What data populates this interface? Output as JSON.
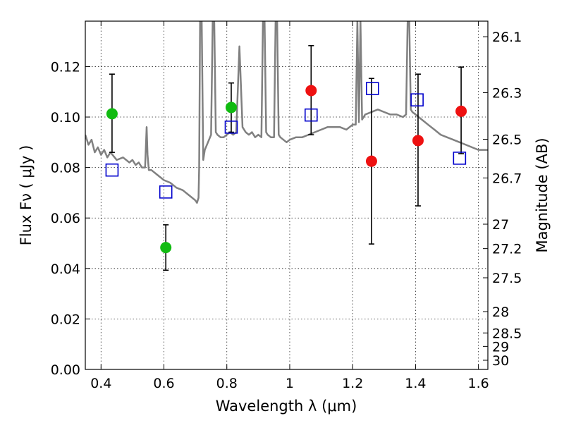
{
  "chart_data": {
    "type": "scatter",
    "xlabel": "Wavelength  λ (μm)",
    "ylabel": "Flux  Fν  ( μJy )",
    "y2label": "Magnitude (AB)",
    "xlim": [
      0.35,
      1.63
    ],
    "ylim": [
      0.0,
      0.138
    ],
    "grid": true,
    "x_ticks": [
      0.4,
      0.6,
      0.8,
      1.0,
      1.2,
      1.4,
      1.6
    ],
    "x_tick_labels": [
      "0.4",
      "0.6",
      "0.8",
      "1",
      "1.2",
      "1.4",
      "1.6"
    ],
    "y_ticks": [
      0.0,
      0.02,
      0.04,
      0.06,
      0.08,
      0.1,
      0.12
    ],
    "y_tick_labels": [
      "0.00",
      "0.02",
      "0.04",
      "0.06",
      "0.08",
      "0.10",
      "0.12"
    ],
    "y2_ticks": [
      26.1,
      26.3,
      26.5,
      26.7,
      27,
      27.2,
      27.5,
      28,
      28.5,
      29,
      30
    ],
    "y2_tick_labels": [
      "26.1",
      "26.3",
      "26.5",
      "26.7",
      "27",
      "27.2",
      "27.5",
      "28",
      "28.5",
      "29",
      "30"
    ],
    "series": [
      {
        "marker": "circle",
        "color": "#11bb11",
        "points": [
          {
            "x": 0.435,
            "y": 0.1013,
            "err_lo": 0.086,
            "err_hi": 0.117
          },
          {
            "x": 0.606,
            "y": 0.0483,
            "err_lo": 0.0393,
            "err_hi": 0.0573
          },
          {
            "x": 0.814,
            "y": 0.1038,
            "err_lo": 0.094,
            "err_hi": 0.1135
          }
        ]
      },
      {
        "marker": "circle",
        "color": "#ee1111",
        "points": [
          {
            "x": 1.068,
            "y": 0.1105,
            "err_lo": 0.093,
            "err_hi": 0.1283
          },
          {
            "x": 1.26,
            "y": 0.0825,
            "err_lo": 0.0497,
            "err_hi": 0.1153
          },
          {
            "x": 1.408,
            "y": 0.0907,
            "err_lo": 0.0648,
            "err_hi": 0.117
          },
          {
            "x": 1.545,
            "y": 0.1023,
            "err_lo": 0.0855,
            "err_hi": 0.1198
          }
        ]
      },
      {
        "marker": "open-square",
        "color": "#0000cc",
        "points": [
          {
            "x": 0.435,
            "y": 0.079
          },
          {
            "x": 0.606,
            "y": 0.0703
          },
          {
            "x": 0.814,
            "y": 0.096
          },
          {
            "x": 1.068,
            "y": 0.1008
          },
          {
            "x": 1.263,
            "y": 0.1113
          },
          {
            "x": 1.405,
            "y": 0.1068
          },
          {
            "x": 1.54,
            "y": 0.0837
          }
        ]
      }
    ],
    "model_spectrum": {
      "type": "line",
      "color": "#808080",
      "x": [
        0.35,
        0.36,
        0.37,
        0.38,
        0.39,
        0.4,
        0.41,
        0.42,
        0.43,
        0.45,
        0.47,
        0.49,
        0.5,
        0.51,
        0.52,
        0.53,
        0.54,
        0.545,
        0.548,
        0.552,
        0.56,
        0.58,
        0.6,
        0.62,
        0.64,
        0.66,
        0.68,
        0.7,
        0.705,
        0.71,
        0.712,
        0.715,
        0.72,
        0.725,
        0.73,
        0.74,
        0.75,
        0.755,
        0.76,
        0.765,
        0.77,
        0.78,
        0.79,
        0.8,
        0.81,
        0.82,
        0.83,
        0.84,
        0.85,
        0.86,
        0.87,
        0.88,
        0.89,
        0.9,
        0.91,
        0.915,
        0.92,
        0.925,
        0.93,
        0.94,
        0.95,
        0.955,
        0.96,
        0.965,
        0.97,
        0.98,
        0.99,
        1.0,
        1.02,
        1.04,
        1.06,
        1.08,
        1.1,
        1.12,
        1.14,
        1.16,
        1.18,
        1.2,
        1.21,
        1.215,
        1.22,
        1.225,
        1.23,
        1.24,
        1.26,
        1.28,
        1.3,
        1.32,
        1.34,
        1.36,
        1.37,
        1.375,
        1.38,
        1.385,
        1.39,
        1.4,
        1.42,
        1.44,
        1.46,
        1.48,
        1.5,
        1.52,
        1.54,
        1.56,
        1.58,
        1.6,
        1.62,
        1.63
      ],
      "y": [
        0.093,
        0.089,
        0.091,
        0.086,
        0.088,
        0.085,
        0.087,
        0.084,
        0.086,
        0.083,
        0.084,
        0.082,
        0.083,
        0.081,
        0.082,
        0.08,
        0.08,
        0.096,
        0.085,
        0.079,
        0.079,
        0.077,
        0.075,
        0.074,
        0.072,
        0.071,
        0.069,
        0.067,
        0.066,
        0.068,
        0.08,
        0.138,
        0.138,
        0.083,
        0.087,
        0.09,
        0.093,
        0.138,
        0.138,
        0.094,
        0.093,
        0.092,
        0.092,
        0.093,
        0.094,
        0.093,
        0.094,
        0.128,
        0.096,
        0.094,
        0.093,
        0.094,
        0.092,
        0.093,
        0.092,
        0.138,
        0.138,
        0.094,
        0.093,
        0.092,
        0.092,
        0.138,
        0.138,
        0.093,
        0.092,
        0.091,
        0.09,
        0.091,
        0.092,
        0.092,
        0.093,
        0.094,
        0.095,
        0.096,
        0.096,
        0.096,
        0.095,
        0.097,
        0.097,
        0.138,
        0.098,
        0.138,
        0.099,
        0.101,
        0.102,
        0.103,
        0.102,
        0.101,
        0.101,
        0.1,
        0.101,
        0.138,
        0.138,
        0.103,
        0.102,
        0.101,
        0.099,
        0.097,
        0.095,
        0.093,
        0.092,
        0.091,
        0.09,
        0.089,
        0.088,
        0.087,
        0.087,
        0.087
      ]
    }
  }
}
